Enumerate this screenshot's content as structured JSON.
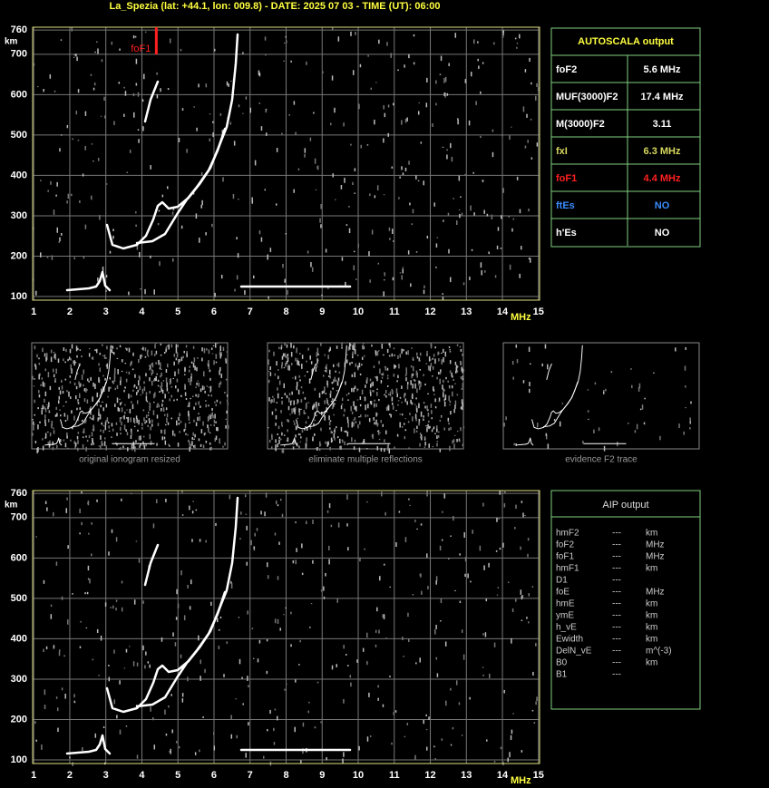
{
  "header": {
    "title": "La_Spezia (lat: +44.1, lon: 009.8) - DATE: 2025 07 03 - TIME (UT): 06:00"
  },
  "ionogram": {
    "y_unit": "km",
    "x_unit": "MHz",
    "xlim": [
      0.97,
      15.03
    ],
    "ylim": [
      91,
      767
    ],
    "xticks": [
      1,
      2,
      3,
      4,
      5,
      6,
      7,
      8,
      9,
      10,
      11,
      12,
      13,
      14,
      15
    ],
    "yticks": [
      100,
      200,
      300,
      400,
      500,
      600,
      700,
      760
    ],
    "marker": {
      "label": "foF1",
      "value": 4.4,
      "color": "#ff2020"
    }
  },
  "autoscala": {
    "title": "AUTOSCALA output",
    "rows": [
      {
        "name": "foF2",
        "value": "5.6 MHz",
        "color": "#ffffff"
      },
      {
        "name": "MUF(3000)F2",
        "value": "17.4 MHz",
        "color": "#ffffff"
      },
      {
        "name": "M(3000)F2",
        "value": "3.11",
        "color": "#ffffff"
      },
      {
        "name": "fxI",
        "value": "6.3 MHz",
        "color": "#d8d860"
      },
      {
        "name": "foF1",
        "value": "4.4 MHz",
        "color": "#ff2020"
      },
      {
        "name": "ftEs",
        "value": "NO",
        "color": "#3a8cff"
      },
      {
        "name": "h'Es",
        "value": "NO",
        "color": "#ffffff"
      }
    ]
  },
  "thumbnails": [
    "original ionogram resized",
    "eliminate multiple reflections",
    "evidence F2 trace"
  ],
  "aip": {
    "title": "AIP output",
    "rows": [
      {
        "name": "hmF2",
        "dash": "---",
        "unit": "km"
      },
      {
        "name": "foF2",
        "dash": "---",
        "unit": "MHz"
      },
      {
        "name": "foF1",
        "dash": "---",
        "unit": "MHz"
      },
      {
        "name": "hmF1",
        "dash": "---",
        "unit": "km"
      },
      {
        "name": "D1",
        "dash": "---"
      },
      {
        "name": "foE",
        "dash": "---",
        "unit": "MHz"
      },
      {
        "name": "hmE",
        "dash": "---",
        "unit": "km"
      },
      {
        "name": "ymE",
        "dash": "---",
        "unit": "km"
      },
      {
        "name": "h_vE",
        "dash": "---",
        "unit": "km"
      },
      {
        "name": "Ewidth",
        "dash": "---",
        "unit": "km"
      },
      {
        "name": "DelN_vE",
        "dash": "---",
        "unit": "m^(-3)"
      },
      {
        "name": "B0",
        "dash": "---",
        "unit": "km"
      },
      {
        "name": "B1",
        "dash": "---"
      }
    ]
  }
}
